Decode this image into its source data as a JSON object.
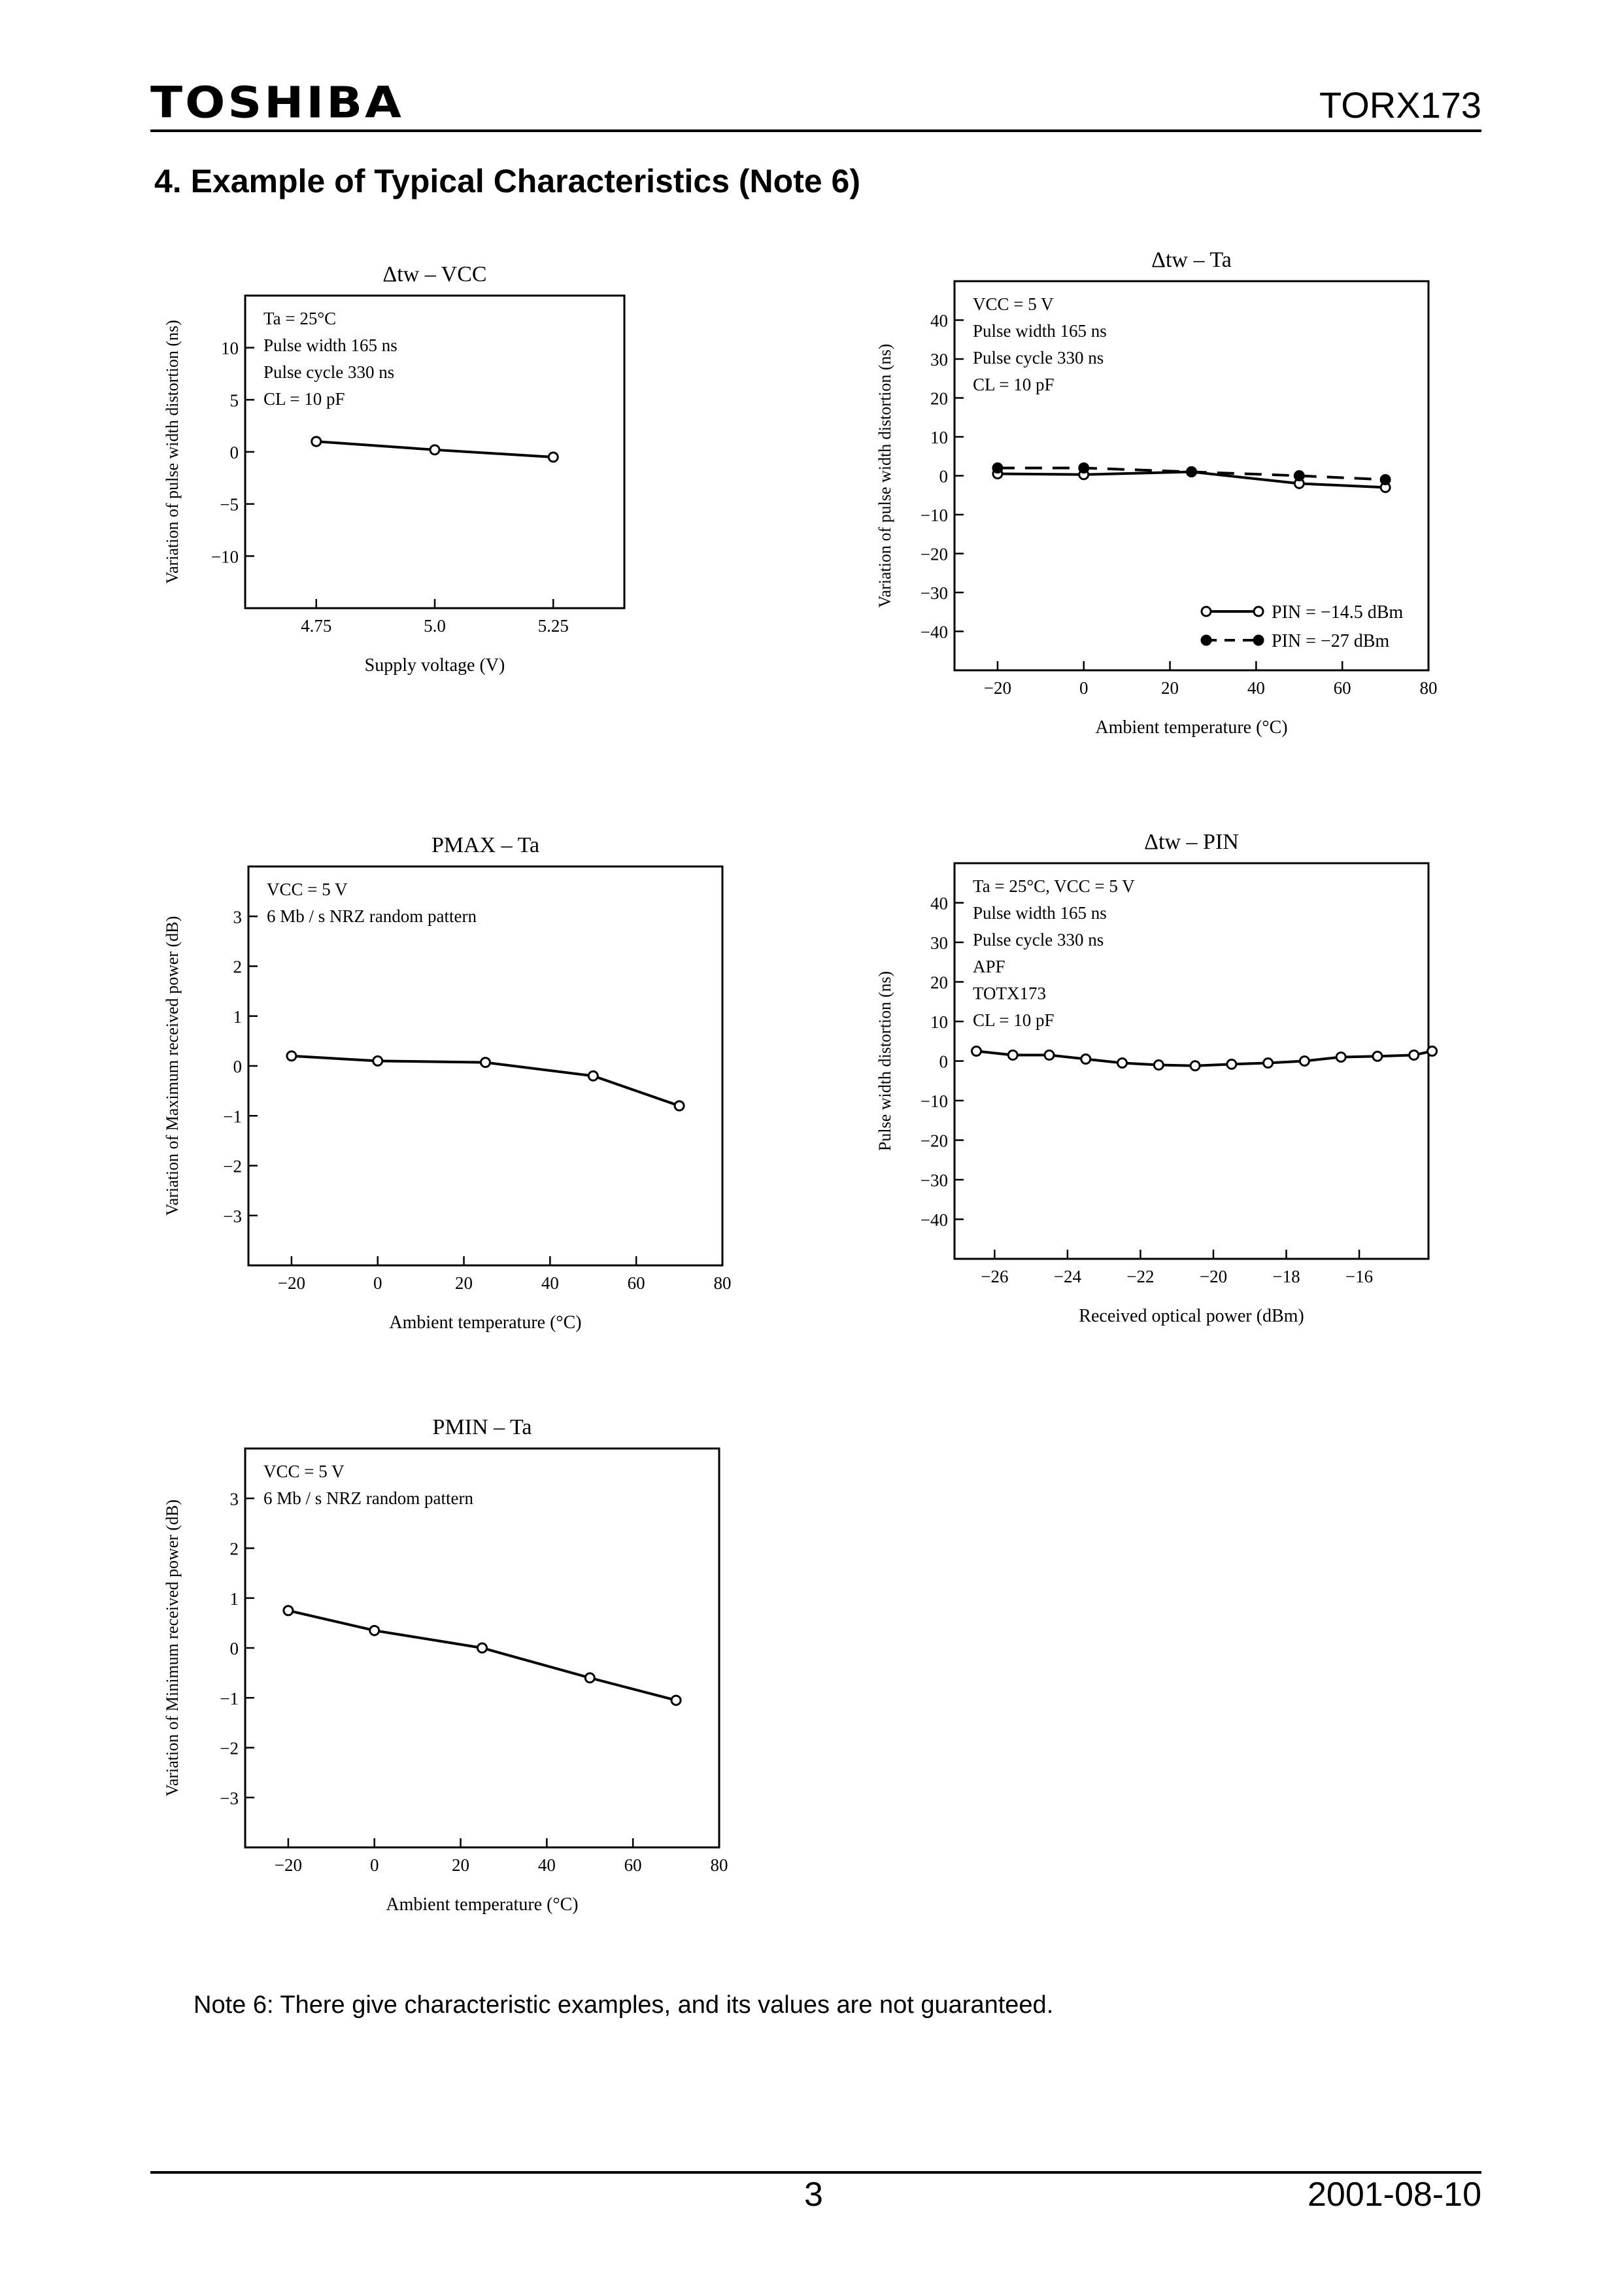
{
  "header": {
    "logo": "TOSHIBA",
    "part": "TORX173"
  },
  "section_title": "4. Example of Typical Characteristics (Note 6)",
  "note": "Note 6: There give characteristic examples, and its values are not guaranteed.",
  "footer": {
    "page": "3",
    "date": "2001-08-10"
  },
  "chart_data": [
    {
      "id": "c1",
      "type": "line",
      "title": "Δtw – VCC",
      "xlabel": "Supply voltage (V)",
      "ylabel": "Variation of pulse width distortion (ns)",
      "xlim": [
        4.6,
        5.4
      ],
      "ylim": [
        -15,
        15
      ],
      "xticks": [
        4.75,
        5.0,
        5.25
      ],
      "xticklabels": [
        "4.75",
        "5.0",
        "5.25"
      ],
      "yticks": [
        10,
        5,
        0,
        -5,
        -10
      ],
      "yticklabels": [
        "10",
        "5",
        "0",
        "−5",
        "−10"
      ],
      "annotation": [
        "Ta = 25°C",
        "Pulse width 165 ns",
        "Pulse cycle 330 ns",
        "CL = 10 pF"
      ],
      "legend_position": "",
      "series": [
        {
          "name": "",
          "style": "solid",
          "marker": "open",
          "x": [
            4.75,
            5.0,
            5.25
          ],
          "y": [
            1.0,
            0.2,
            -0.5
          ]
        }
      ]
    },
    {
      "id": "c2",
      "type": "line",
      "title": "Δtw – Ta",
      "xlabel": "Ambient temperature (°C)",
      "ylabel": "Variation of pulse width distortion (ns)",
      "xlim": [
        -30,
        80
      ],
      "ylim": [
        -50,
        50
      ],
      "xticks": [
        -20,
        0,
        20,
        40,
        60,
        80
      ],
      "xticklabels": [
        "−20",
        "0",
        "20",
        "40",
        "60",
        "80"
      ],
      "yticks": [
        40,
        30,
        20,
        10,
        0,
        -10,
        -20,
        -30,
        -40
      ],
      "yticklabels": [
        "40",
        "30",
        "20",
        "10",
        "0",
        "−10",
        "−20",
        "−30",
        "−40"
      ],
      "annotation": [
        "VCC = 5 V",
        "Pulse width 165 ns",
        "Pulse cycle 330 ns",
        "CL = 10 pF"
      ],
      "legend_position": "bottom-right",
      "series": [
        {
          "name": "PIN = −14.5 dBm",
          "style": "solid",
          "marker": "open",
          "x": [
            -20,
            0,
            25,
            50,
            70
          ],
          "y": [
            0.5,
            0.3,
            1.0,
            -2.0,
            -3.0
          ]
        },
        {
          "name": "PIN = −27 dBm",
          "style": "dashed",
          "marker": "filled",
          "x": [
            -20,
            0,
            25,
            50,
            70
          ],
          "y": [
            2.0,
            2.0,
            1.0,
            0.0,
            -1.0
          ]
        }
      ]
    },
    {
      "id": "c3",
      "type": "line",
      "title": "PMAX – Ta",
      "xlabel": "Ambient temperature (°C)",
      "ylabel": "Variation of Maximum received power (dB)",
      "xlim": [
        -30,
        80
      ],
      "ylim": [
        -4,
        4
      ],
      "xticks": [
        -20,
        0,
        20,
        40,
        60,
        80
      ],
      "xticklabels": [
        "−20",
        "0",
        "20",
        "40",
        "60",
        "80"
      ],
      "yticks": [
        3,
        2,
        1,
        0,
        -1,
        -2,
        -3
      ],
      "yticklabels": [
        "3",
        "2",
        "1",
        "0",
        "−1",
        "−2",
        "−3"
      ],
      "annotation": [
        "VCC = 5 V",
        "6 Mb / s NRZ random pattern"
      ],
      "legend_position": "",
      "series": [
        {
          "name": "",
          "style": "solid",
          "marker": "open",
          "x": [
            -20,
            0,
            25,
            50,
            70
          ],
          "y": [
            0.2,
            0.1,
            0.07,
            -0.2,
            -0.8
          ]
        }
      ]
    },
    {
      "id": "c4",
      "type": "line",
      "title": "Δtw – PIN",
      "xlabel": "Received optical power (dBm)",
      "ylabel": "Pulse width distortion (ns)",
      "xlim": [
        -27.1,
        -14.1
      ],
      "ylim": [
        -50,
        50
      ],
      "xticks": [
        -26,
        -24,
        -22,
        -20,
        -18,
        -16
      ],
      "xticklabels": [
        "−26",
        "−24",
        "−22",
        "−20",
        "−18",
        "−16"
      ],
      "yticks": [
        40,
        30,
        20,
        10,
        0,
        -10,
        -20,
        -30,
        -40
      ],
      "yticklabels": [
        "40",
        "30",
        "20",
        "10",
        "0",
        "−10",
        "−20",
        "−30",
        "−40"
      ],
      "annotation": [
        "Ta = 25°C, VCC = 5 V",
        "Pulse width 165 ns",
        "Pulse cycle 330 ns",
        "APF",
        "TOTX173",
        "CL = 10 pF"
      ],
      "legend_position": "",
      "series": [
        {
          "name": "",
          "style": "solid",
          "marker": "open",
          "x": [
            -26.5,
            -25.5,
            -24.5,
            -23.5,
            -22.5,
            -21.5,
            -20.5,
            -19.5,
            -18.5,
            -17.5,
            -16.5,
            -15.5,
            -14.5,
            -14.0
          ],
          "y": [
            2.5,
            1.5,
            1.5,
            0.5,
            -0.5,
            -1.0,
            -1.2,
            -0.8,
            -0.5,
            0.0,
            1.0,
            1.2,
            1.5,
            2.5
          ]
        }
      ]
    },
    {
      "id": "c5",
      "type": "line",
      "title": "PMIN – Ta",
      "xlabel": "Ambient temperature (°C)",
      "ylabel": "Variation of Minimum received power (dB)",
      "xlim": [
        -30,
        80
      ],
      "ylim": [
        -4,
        4
      ],
      "xticks": [
        -20,
        0,
        20,
        40,
        60,
        80
      ],
      "xticklabels": [
        "−20",
        "0",
        "20",
        "40",
        "60",
        "80"
      ],
      "yticks": [
        3,
        2,
        1,
        0,
        -1,
        -2,
        -3
      ],
      "yticklabels": [
        "3",
        "2",
        "1",
        "0",
        "−1",
        "−2",
        "−3"
      ],
      "annotation": [
        "VCC = 5 V",
        "6 Mb / s NRZ random pattern"
      ],
      "legend_position": "",
      "series": [
        {
          "name": "",
          "style": "solid",
          "marker": "open",
          "x": [
            -20,
            0,
            25,
            50,
            70
          ],
          "y": [
            0.75,
            0.35,
            0.0,
            -0.6,
            -1.05
          ]
        }
      ]
    }
  ]
}
